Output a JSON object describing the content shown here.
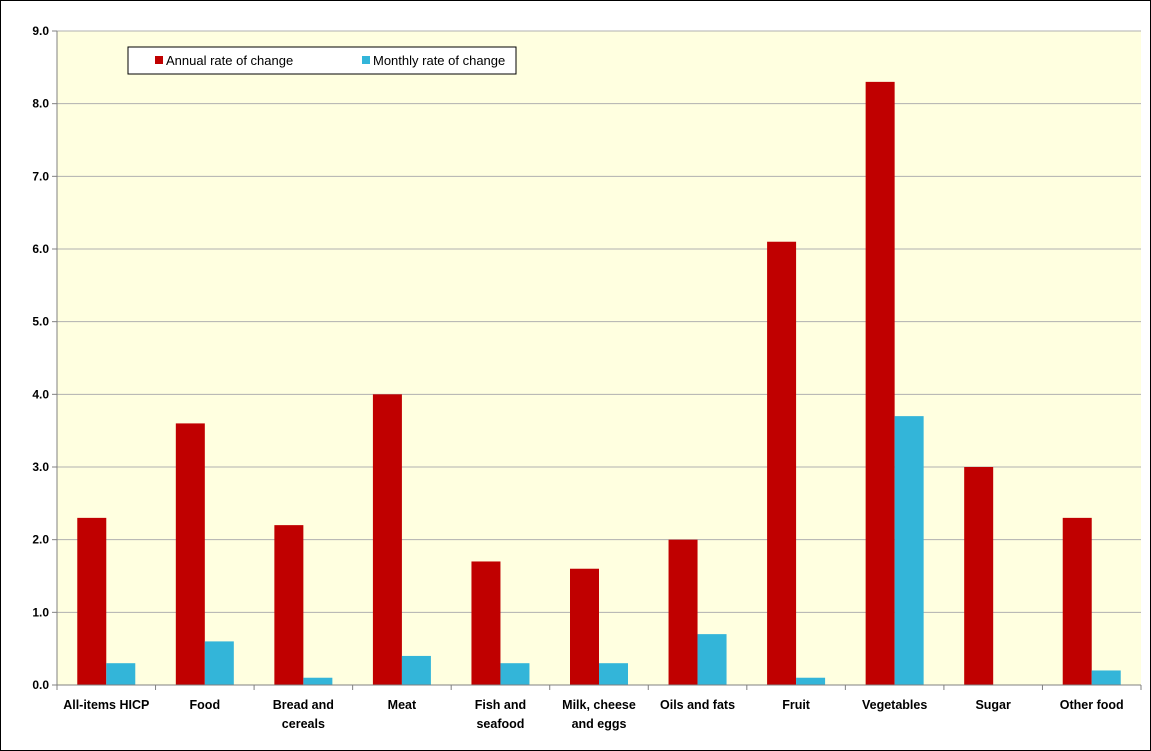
{
  "chart_data": {
    "type": "bar",
    "title": "",
    "xlabel": "",
    "ylabel": "",
    "ylim": [
      0,
      9
    ],
    "yticks": [
      "0.0",
      "1.0",
      "2.0",
      "3.0",
      "4.0",
      "5.0",
      "6.0",
      "7.0",
      "8.0",
      "9.0"
    ],
    "grid": true,
    "legend_position": "top-left",
    "plot_background": "#FFFFE0",
    "categories": [
      [
        "All-items HICP"
      ],
      [
        "Food"
      ],
      [
        "Bread and",
        "cereals"
      ],
      [
        "Meat"
      ],
      [
        "Fish and",
        "seafood"
      ],
      [
        "Milk, cheese",
        "and eggs"
      ],
      [
        "Oils and fats"
      ],
      [
        "Fruit"
      ],
      [
        "Vegetables"
      ],
      [
        "Sugar"
      ],
      [
        "Other food"
      ]
    ],
    "series": [
      {
        "name": "Annual rate of change",
        "color": "#C00000",
        "values": [
          2.3,
          3.6,
          2.2,
          4.0,
          1.7,
          1.6,
          2.0,
          6.1,
          8.3,
          3.0,
          2.3
        ]
      },
      {
        "name": "Monthly rate of change",
        "color": "#33B5D9",
        "values": [
          0.3,
          0.6,
          0.1,
          0.4,
          0.3,
          0.3,
          0.7,
          0.1,
          3.7,
          0.0,
          0.2
        ]
      }
    ]
  }
}
